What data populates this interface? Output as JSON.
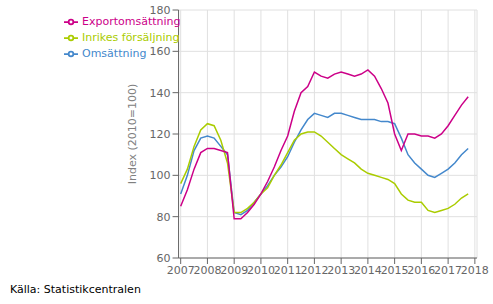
{
  "chart_data": {
    "type": "line",
    "ylabel": "Index (2010=100)",
    "annotations": [
      "Källa: Statistikcentralen"
    ],
    "x": [
      2007.0,
      2007.25,
      2007.5,
      2007.75,
      2008.0,
      2008.25,
      2008.5,
      2008.75,
      2009.0,
      2009.25,
      2009.5,
      2009.75,
      2010.0,
      2010.25,
      2010.5,
      2010.75,
      2011.0,
      2011.25,
      2011.5,
      2011.75,
      2012.0,
      2012.25,
      2012.5,
      2012.75,
      2013.0,
      2013.25,
      2013.5,
      2013.75,
      2014.0,
      2014.25,
      2014.5,
      2014.75,
      2015.0,
      2015.25,
      2015.5,
      2015.75,
      2016.0,
      2016.25,
      2016.5,
      2016.75,
      2017.0,
      2017.25,
      2017.5,
      2017.75
    ],
    "series": [
      {
        "name": "Omsättning",
        "color": "#4488cc",
        "values": [
          91,
          100,
          112,
          118,
          119,
          118,
          114,
          110,
          82,
          81,
          83,
          87,
          91,
          95,
          100,
          104,
          109,
          116,
          122,
          127,
          130,
          129,
          128,
          130,
          130,
          129,
          128,
          127,
          127,
          127,
          126,
          126,
          125,
          118,
          110,
          106,
          103,
          100,
          99,
          101,
          103,
          106,
          110,
          113
        ]
      },
      {
        "name": "Inrikes försäljning",
        "color": "#aacc00",
        "values": [
          96,
          103,
          114,
          122,
          125,
          124,
          117,
          106,
          82,
          82,
          84,
          87,
          91,
          94,
          100,
          105,
          111,
          117,
          120,
          121,
          121,
          119,
          116,
          113,
          110,
          108,
          106,
          103,
          101,
          100,
          99,
          98,
          96,
          91,
          88,
          87,
          87,
          83,
          82,
          83,
          84,
          86,
          89,
          91
        ]
      },
      {
        "name": "Exportomsättning",
        "color": "#cc0088",
        "values": [
          85,
          93,
          103,
          111,
          113,
          113,
          112,
          111,
          79,
          79,
          82,
          86,
          91,
          97,
          104,
          112,
          119,
          131,
          140,
          143,
          150,
          148,
          147,
          149,
          150,
          149,
          148,
          149,
          151,
          148,
          142,
          135,
          120,
          112,
          120,
          120,
          119,
          119,
          118,
          120,
          124,
          129,
          134,
          138
        ]
      }
    ],
    "xlim": [
      2006.92,
      2018.08
    ],
    "xticks": [
      2007,
      2008,
      2009,
      2010,
      2011,
      2012,
      2013,
      2014,
      2015,
      2016,
      2017,
      2018
    ],
    "ylim": [
      60,
      180
    ],
    "yticks": [
      60,
      80,
      100,
      120,
      140,
      160,
      180
    ],
    "grid": true,
    "legend": "upper left"
  }
}
